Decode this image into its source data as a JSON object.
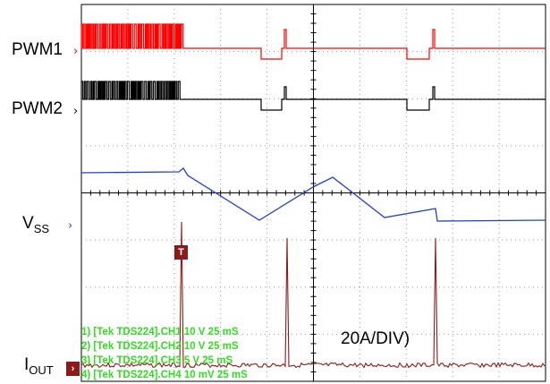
{
  "chart_data": {
    "type": "line",
    "title": "",
    "x_divisions": 10,
    "y_divisions": 8,
    "grid": true,
    "channel_labels": {
      "pwm1": "PWM1",
      "pwm2": "PWM2",
      "vss_main": "V",
      "vss_sub": "SS",
      "iout_main": "I",
      "iout_sub": "OUT"
    },
    "trigger_label": "T",
    "ref_label": "2",
    "scale_label": "20A/DIV)",
    "legend": [
      "1) [Tek TDS224].CH1  10  V   25 mS",
      "2) [Tek TDS224].CH2  10  V   25 mS",
      "3) [Tek TDS224].CH3  5  V   25 mS",
      "4) [Tek TDS224].CH4  10  mV   25 mS"
    ],
    "series": [
      {
        "name": "PWM1",
        "color": "#ff0000"
      },
      {
        "name": "PWM2",
        "color": "#000000"
      },
      {
        "name": "VSS",
        "color": "#1f3fd6"
      },
      {
        "name": "IOUT",
        "color": "#8b1a1a"
      }
    ]
  }
}
